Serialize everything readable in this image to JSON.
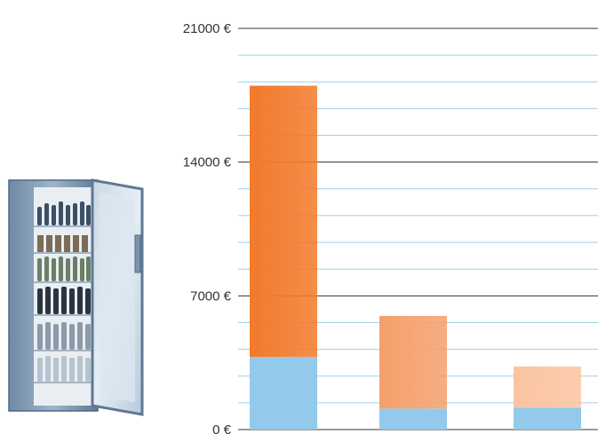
{
  "chart_data": {
    "type": "bar",
    "stacked": true,
    "categories": [
      "",
      "",
      ""
    ],
    "series": [
      {
        "values": [
          3800,
          1100,
          1150
        ],
        "color": "#93c9ea"
      },
      {
        "values": [
          14200,
          4850,
          2150
        ],
        "colors": [
          "#f27a2a",
          "#f5a06c",
          "#fbc4a0"
        ]
      }
    ],
    "ylim": [
      0,
      21000
    ],
    "yticks": [
      0,
      7000,
      14000,
      21000
    ],
    "ytick_labels": [
      "0 €",
      "7000 €",
      "14000 €",
      "21000 €"
    ],
    "minor_step": 1400,
    "grid": true,
    "title": "",
    "xlabel": "",
    "ylabel": ""
  },
  "colors": {
    "major_grid": "#333333",
    "minor_grid": "#9dd0ea",
    "base_series": "#93c9ea"
  },
  "illustration": {
    "icon": "glass-door-beverage-fridge-icon"
  }
}
